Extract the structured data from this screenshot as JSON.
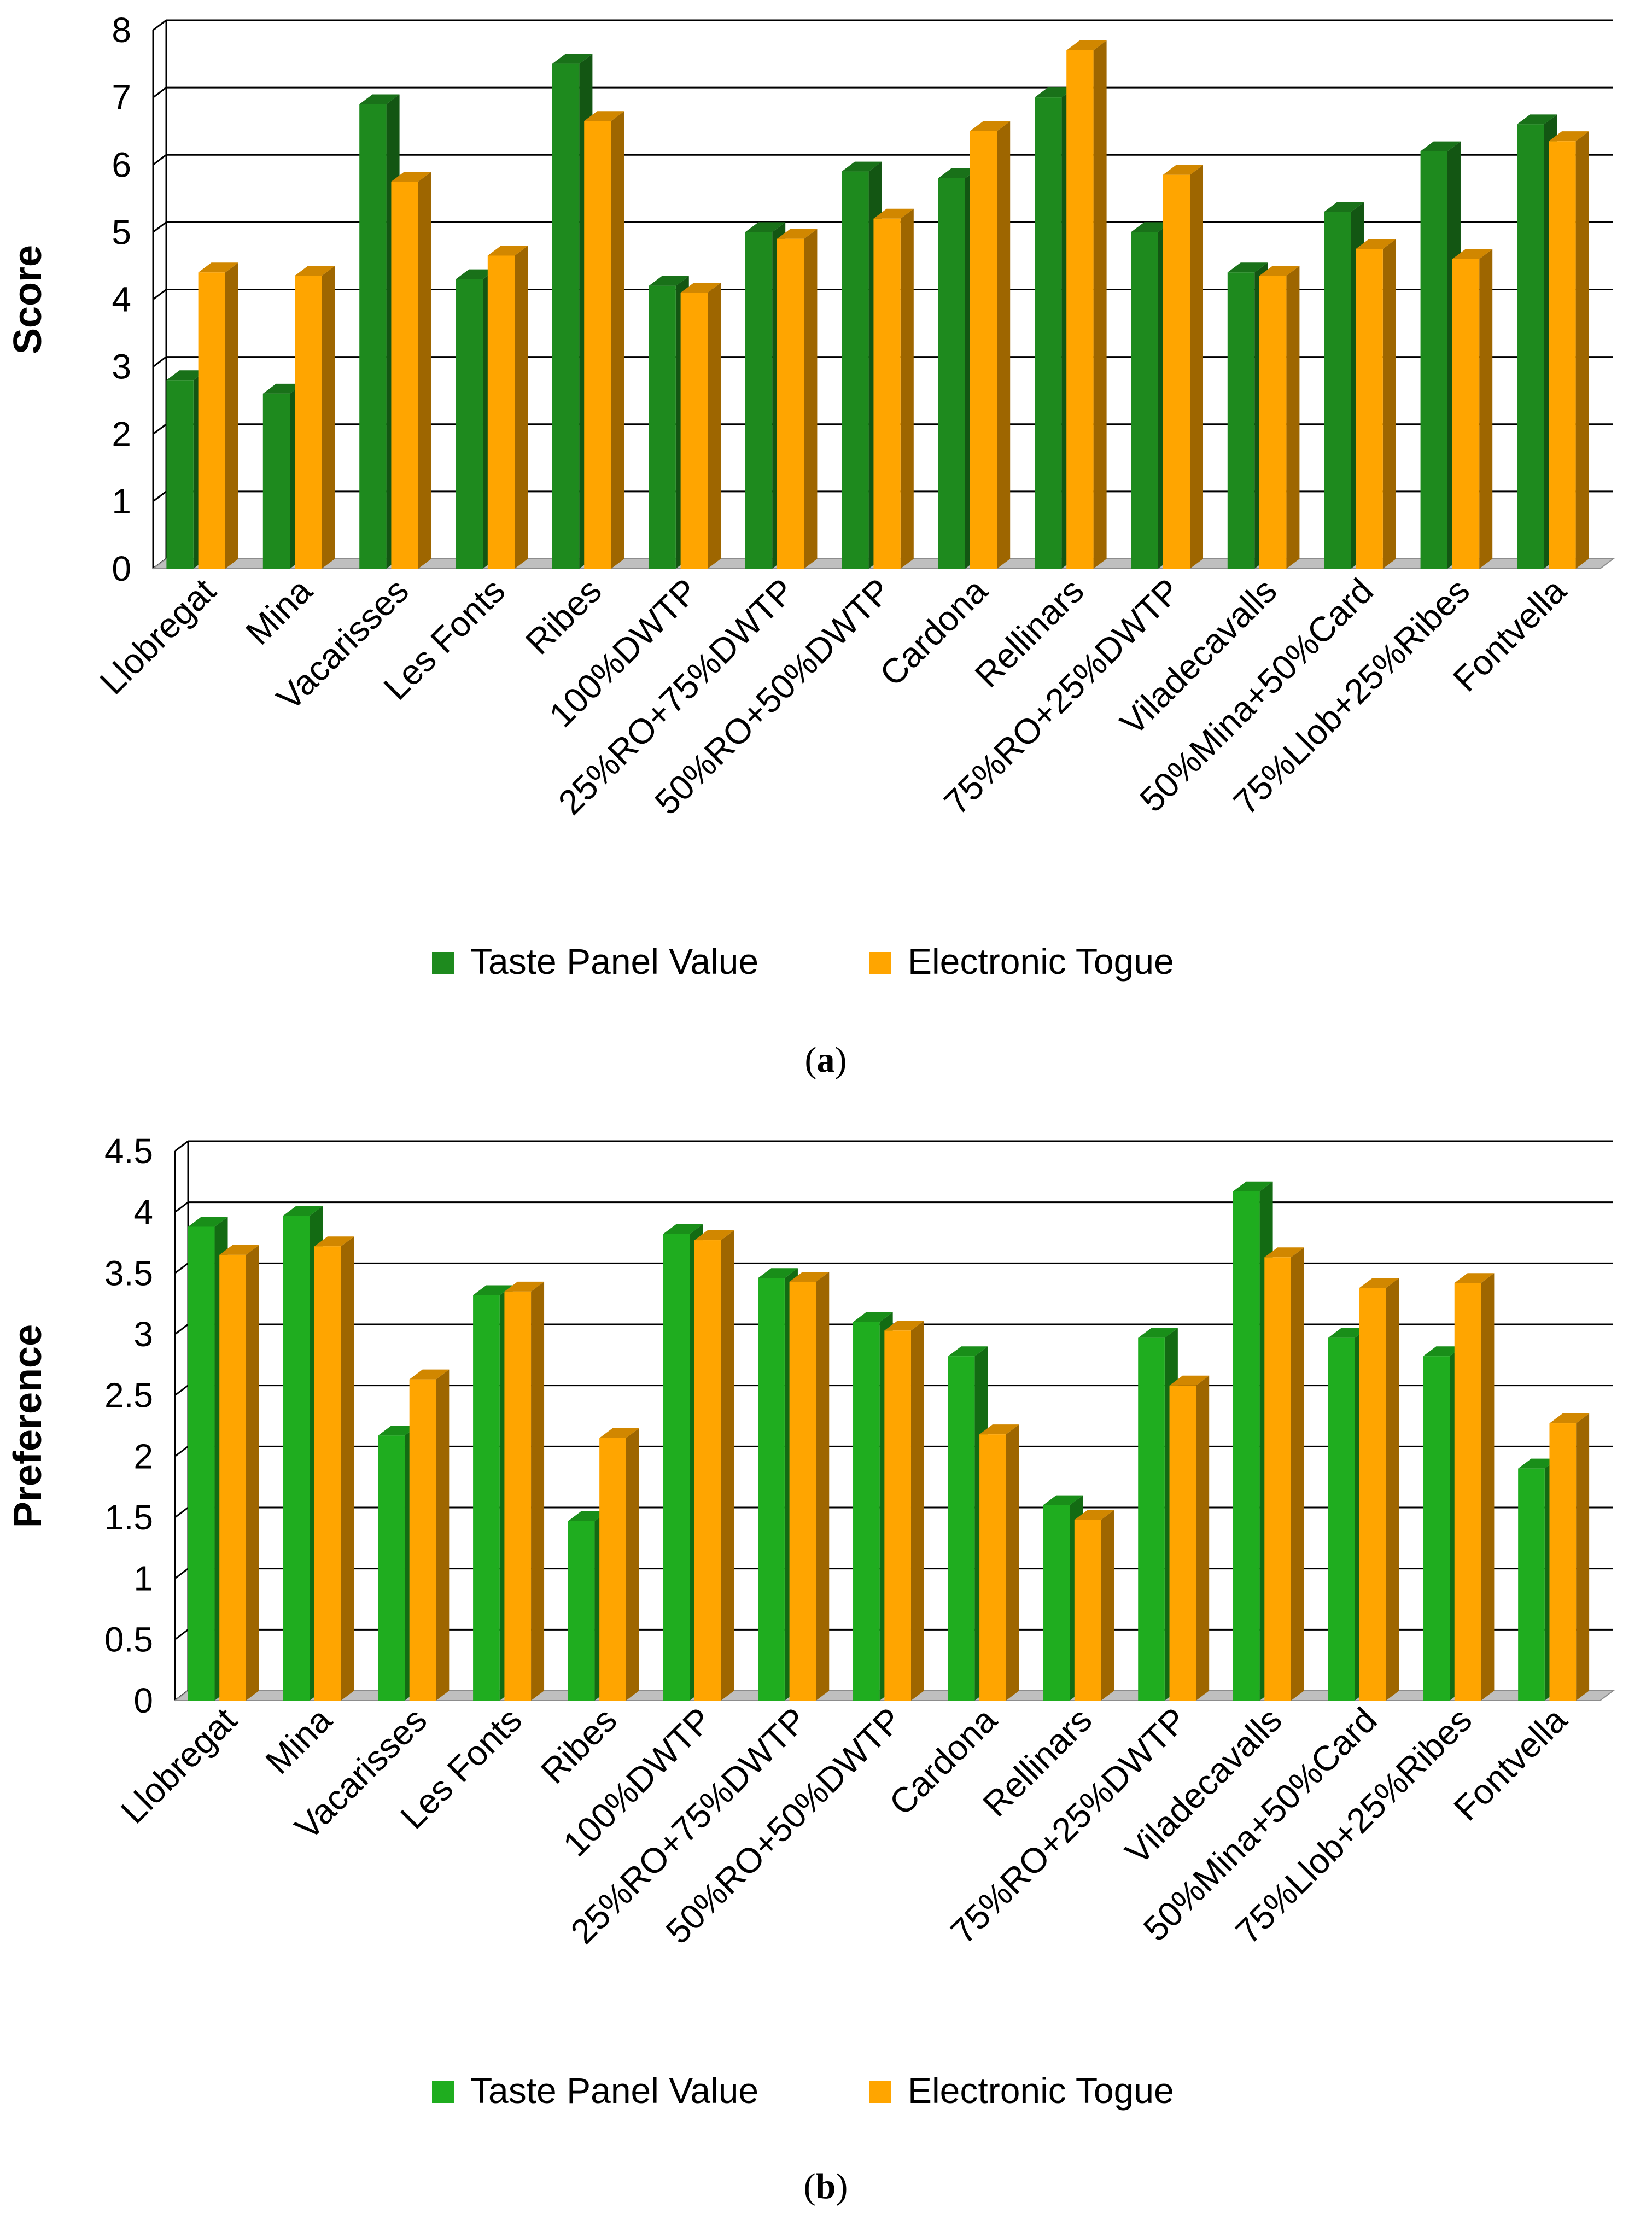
{
  "chart_data": [
    {
      "type": "bar",
      "caption_label": "a",
      "ylabel": "Score",
      "ylim": [
        0,
        8
      ],
      "yticks": [
        "0",
        "1",
        "2",
        "3",
        "4",
        "5",
        "6",
        "7",
        "8"
      ],
      "categories": [
        "Llobregat",
        "Mina",
        "Vacarisses",
        "Les Fonts",
        "Ribes",
        "100%DWTP",
        "25%RO+75%DWTP",
        "50%RO+50%DWTP",
        "Cardona",
        "Rellinars",
        "75%RO+25%DWTP",
        "Viladecavalls",
        "50%Mina+50%Card",
        "75%Llob+25%Ribes",
        "Fontvella"
      ],
      "series": [
        {
          "name": "Taste Panel Value",
          "color": "#1e8a1e",
          "values": [
            2.8,
            2.6,
            6.9,
            4.3,
            7.5,
            4.2,
            5.0,
            5.9,
            5.8,
            7.0,
            5.0,
            4.4,
            5.3,
            6.2,
            6.6
          ]
        },
        {
          "name": "Electronic Togue",
          "color": "#ffa500",
          "values": [
            4.4,
            4.35,
            5.75,
            4.65,
            6.65,
            4.1,
            4.9,
            5.2,
            6.5,
            7.7,
            5.85,
            4.35,
            4.75,
            4.6,
            6.35
          ]
        }
      ],
      "legend": [
        "Taste Panel Value",
        "Electronic Togue"
      ],
      "legend_position": "bottom",
      "grid": true
    },
    {
      "type": "bar",
      "caption_label": "b",
      "ylabel": "Preference",
      "ylim": [
        0,
        4.5
      ],
      "yticks": [
        "0",
        "0.5",
        "1",
        "1.5",
        "2",
        "2.5",
        "3",
        "3.5",
        "4",
        "4.5"
      ],
      "categories": [
        "Llobregat",
        "Mina",
        "Vacarisses",
        "Les Fonts",
        "Ribes",
        "100%DWTP",
        "25%RO+75%DWTP",
        "50%RO+50%DWTP",
        "Cardona",
        "Rellinars",
        "75%RO+25%DWTP",
        "Viladecavalls",
        "50%Mina+50%Card",
        "75%Llob+25%Ribes",
        "Fontvella"
      ],
      "series": [
        {
          "name": "Taste Panel Value",
          "color": "#1fad1f",
          "values": [
            3.88,
            3.97,
            2.17,
            3.32,
            1.47,
            3.82,
            3.46,
            3.1,
            2.82,
            1.6,
            2.97,
            4.17,
            2.97,
            2.82,
            1.9
          ]
        },
        {
          "name": "Electronic Togue",
          "color": "#ffa500",
          "values": [
            3.65,
            3.72,
            2.63,
            3.35,
            2.15,
            3.77,
            3.43,
            3.03,
            2.18,
            1.48,
            2.58,
            3.63,
            3.38,
            3.42,
            2.27
          ]
        }
      ],
      "legend": [
        "Taste Panel Value",
        "Electronic Togue"
      ],
      "legend_position": "bottom",
      "grid": true
    }
  ]
}
